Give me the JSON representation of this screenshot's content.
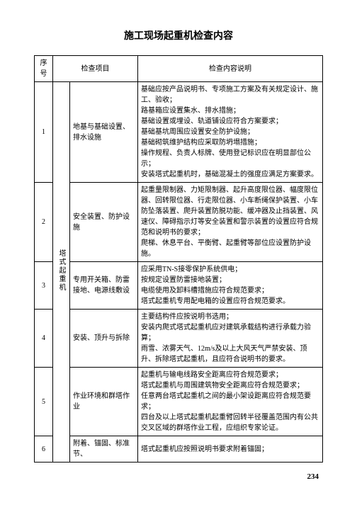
{
  "title": "施工现场起重机检查内容",
  "headers": {
    "seq": "序号",
    "item": "检查项目",
    "desc": "检查内容说明"
  },
  "category": "塔式起重机",
  "rows": [
    {
      "seq": "1",
      "item": "地基与基础设置、排水设施",
      "desc": "基础应按产品说明书、专项施工方案及有关规定设计、施工、验收；\n路基箱应设置集水、排水措施；\n基础设置或埋设、轨道铺设应符合方案要求；\n基础基坑周围应设置安全防护设施；\n基础砌筑维护结构应采取防坍塌措施；\n操作规程、负责人标牌、使用登记标识应在明显部位公示；\n安装塔式起重机时，基础混凝土的强度应满足方案要求。"
    },
    {
      "seq": "2",
      "item": "安全装置、防护设施",
      "desc": "起重量限制器、力矩限制器、起升高度限位器、幅度限位器、回转限位器、行走限位器、小车断绳保护装置、小车防坠落装置、爬升装置防脱功能、缓冲器及止挡装置、风速仪、障碍指示灯等安全装置和警示装置的设置应符合规范和说明书的要求；\n爬梯、休息平台、平衡臂、起重臂等部位应设置防护设施。"
    },
    {
      "seq": "3",
      "item": "专用开关箱、防雷接地、电源线敷设",
      "desc": "应采用TN-S接零保护系统供电；\n按规定设置防雷接地装置；\n电缆使用及卸料槽措施应符合规范要求；\n塔式起重机专用配电箱的设置应符合规范要求。"
    },
    {
      "seq": "4",
      "item": "安装、顶升与拆除",
      "desc": "主要结构件应按说明书选用；\n安装内爬式塔式起重机应对建筑承载结构进行承载力验算；\n雨雪、浓雾天气、12m/s及以上大风天气严禁安装、顶升、拆除塔式起重机，且应符合说明书的要求。"
    },
    {
      "seq": "5",
      "item": "作业环境和群塔作业",
      "desc": "起重机与输电线路安全距离应符合规范要求；\n塔式起重机与周围建筑物安全距离应符合规范要求；\n任意两台塔式起重机之间的最小架设距离应符合规范要求；\n四台及以上塔式起重机起重臂回转半径覆盖范围内有公共交叉区域的群塔作业工程，应组织专家论证。"
    },
    {
      "seq": "6",
      "item": "附着、锚固、标准节、",
      "desc": "塔式起重机应按照说明书要求附着锚固；"
    }
  ],
  "pagenum": "234"
}
